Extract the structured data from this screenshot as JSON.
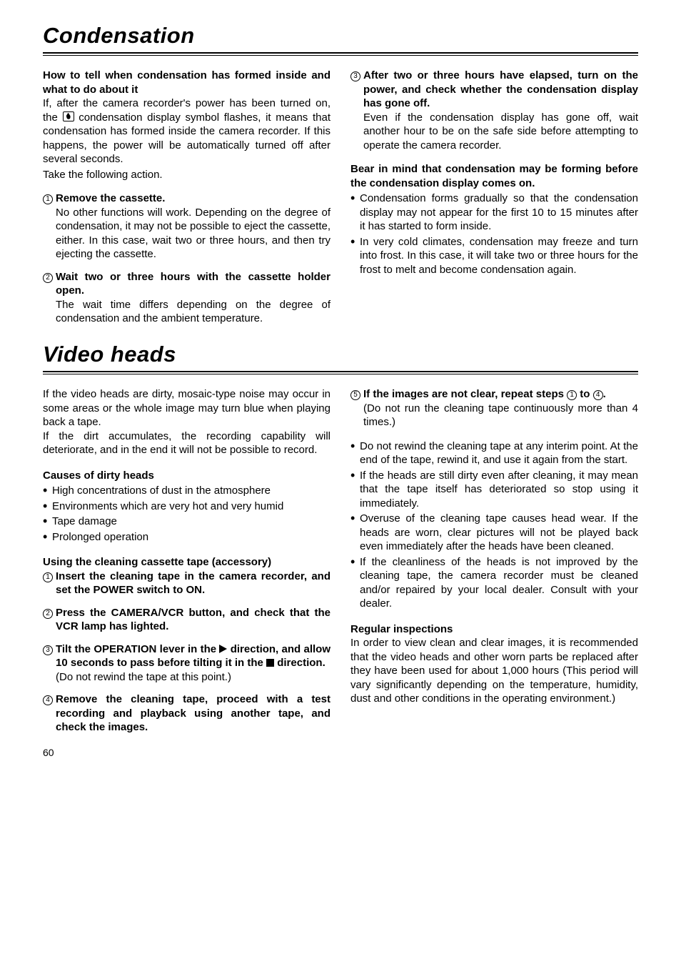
{
  "section1": {
    "title": "Condensation",
    "left": {
      "heading": "How to tell when condensation has formed inside and what to do about it",
      "intro1_a": "If, after the camera recorder's power has been turned on, the ",
      "intro1_b": " condensation display symbol flashes, it means that condensation has formed inside the camera recorder.  If this happens, the power will be automatically turned off after several seconds.",
      "intro2": "Take the following action.",
      "step1_head": "Remove the cassette.",
      "step1_body": "No other functions will work.  Depending on the degree of condensation, it may not be possible to eject the cassette, either.  In this case, wait two or three hours, and then try ejecting the cassette.",
      "step2_head": "Wait two or three hours with the cassette holder open.",
      "step2_body": "The wait time differs depending on the degree of condensation and the ambient temperature."
    },
    "right": {
      "step3_head": "After two or three hours have elapsed, turn on the power, and check whether the condensation display has gone off.",
      "step3_body": "Even if the condensation display has gone off, wait another hour to be on the safe side before attempting to operate the camera recorder.",
      "warn": "Bear in mind that condensation may be forming before the condensation display comes on.",
      "b1": "Condensation forms gradually so that the condensation display may not appear for the first 10 to 15 minutes after it has started to form inside.",
      "b2": "In very cold climates, condensation may freeze and turn into frost.  In this case, it will take two or three hours for the frost to melt and become condensation again."
    }
  },
  "section2": {
    "title": "Video heads",
    "left": {
      "p1": "If the video heads are dirty, mosaic-type noise may occur in some areas or the whole image may turn blue when playing back a tape.",
      "p2": "If the dirt accumulates, the recording capability will deteriorate, and in the end it will not be possible to record.",
      "causes_head": "Causes of dirty heads",
      "c1": "High concentrations of dust in the atmosphere",
      "c2": "Environments which are very hot and very humid",
      "c3": "Tape damage",
      "c4": "Prolonged operation",
      "use_head": "Using the cleaning cassette tape (accessory)",
      "s1": "Insert the cleaning tape in the camera recorder, and set the POWER switch to ON.",
      "s2": "Press the CAMERA/VCR button, and check that the VCR lamp has lighted.",
      "s3_a": "Tilt the OPERATION lever in the ",
      "s3_b": " direction, and allow 10 seconds to pass before tilting it in the ",
      "s3_c": " direction.",
      "s3_note": "(Do not rewind the tape at this point.)",
      "s4": "Remove the cleaning tape, proceed with a test recording and playback using another tape, and check the images."
    },
    "right": {
      "s5_a": "If the images are not clear, repeat steps ",
      "s5_b": " to ",
      "s5_c": ".",
      "s5_note": "(Do not run the cleaning tape continuously more than 4 times.)",
      "b1": "Do not rewind the cleaning tape at any interim point.  At the end of the tape, rewind it, and use it again from the start.",
      "b2": "If the heads are still dirty even after cleaning, it may mean that the tape itself has deteriorated so stop using it immediately.",
      "b3": "Overuse of the cleaning tape causes head wear.  If the heads are worn, clear pictures will not be played back even immediately after the heads have been cleaned.",
      "b4": "If the cleanliness of the heads is not improved by the cleaning tape, the camera recorder must be cleaned and/or repaired by your local dealer.  Consult with your dealer.",
      "reg_head": "Regular inspections",
      "reg_body": "In order to view clean and clear images, it is recommended that the video heads and other worn parts be replaced after they have been used for about 1,000 hours  (This period will vary significantly depending on the temperature, humidity, dust and other conditions in the operating environment.)"
    }
  },
  "page": "60"
}
